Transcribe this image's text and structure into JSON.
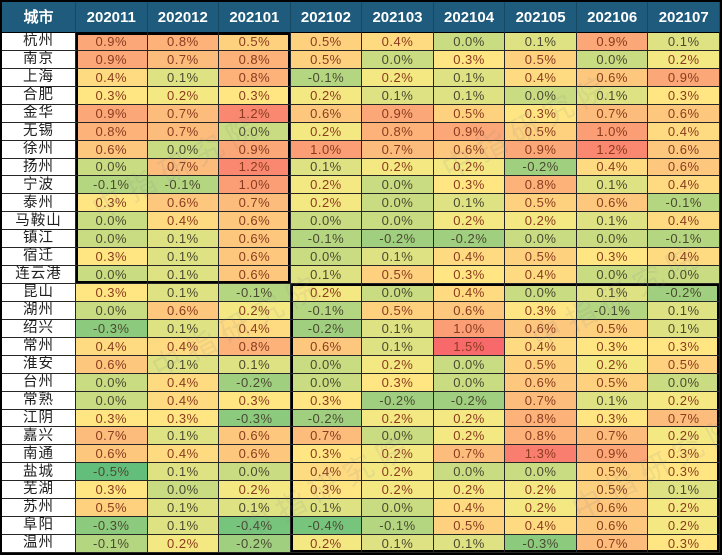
{
  "chart_data": {
    "type": "heatmap",
    "title": "",
    "header_city_label": "城市",
    "columns": [
      "202011",
      "202012",
      "202101",
      "202102",
      "202103",
      "202104",
      "202105",
      "202106",
      "202107"
    ],
    "unit": "%",
    "rows": [
      {
        "city": "杭州",
        "values": [
          0.9,
          0.8,
          0.5,
          0.5,
          0.4,
          0.0,
          0.1,
          0.9,
          0.1
        ]
      },
      {
        "city": "南京",
        "values": [
          0.9,
          0.7,
          0.8,
          0.5,
          0.0,
          0.3,
          0.5,
          0.0,
          0.2
        ]
      },
      {
        "city": "上海",
        "values": [
          0.4,
          0.1,
          0.8,
          -0.1,
          0.2,
          0.1,
          0.4,
          0.6,
          0.9
        ]
      },
      {
        "city": "合肥",
        "values": [
          0.3,
          0.2,
          0.3,
          0.2,
          0.1,
          0.1,
          0.0,
          0.1,
          0.3
        ]
      },
      {
        "city": "金华",
        "values": [
          0.9,
          0.7,
          1.2,
          0.6,
          0.9,
          0.5,
          0.3,
          0.7,
          0.6
        ]
      },
      {
        "city": "无锡",
        "values": [
          0.8,
          0.7,
          0.0,
          0.2,
          0.8,
          0.9,
          0.5,
          1.0,
          0.4
        ]
      },
      {
        "city": "徐州",
        "values": [
          0.6,
          0.0,
          0.9,
          1.0,
          0.7,
          0.6,
          0.9,
          1.2,
          0.6
        ]
      },
      {
        "city": "扬州",
        "values": [
          0.0,
          0.7,
          1.2,
          0.1,
          0.2,
          0.2,
          -0.2,
          0.4,
          0.6
        ]
      },
      {
        "city": "宁波",
        "values": [
          -0.1,
          -0.1,
          1.0,
          0.2,
          0.0,
          0.3,
          0.8,
          0.1,
          0.4
        ]
      },
      {
        "city": "泰州",
        "values": [
          0.3,
          0.6,
          0.7,
          0.2,
          0.0,
          0.1,
          0.5,
          0.6,
          -0.1
        ]
      },
      {
        "city": "马鞍山",
        "values": [
          0.0,
          0.4,
          0.6,
          0.0,
          0.0,
          0.2,
          0.2,
          0.1,
          0.4
        ]
      },
      {
        "city": "镇江",
        "values": [
          0.0,
          0.1,
          0.6,
          -0.1,
          -0.2,
          -0.2,
          0.0,
          0.0,
          -0.1
        ]
      },
      {
        "city": "宿迁",
        "values": [
          0.3,
          0.1,
          0.6,
          0.0,
          0.1,
          0.4,
          0.5,
          0.3,
          0.4
        ]
      },
      {
        "city": "连云港",
        "values": [
          0.0,
          0.1,
          0.6,
          0.1,
          0.5,
          0.3,
          0.4,
          0.0,
          0.0
        ]
      },
      {
        "city": "昆山",
        "values": [
          0.3,
          0.1,
          -0.1,
          0.2,
          0.0,
          0.4,
          0.0,
          0.1,
          -0.2
        ]
      },
      {
        "city": "湖州",
        "values": [
          0.0,
          0.6,
          0.2,
          -0.1,
          0.5,
          0.6,
          0.3,
          -0.1,
          0.1
        ]
      },
      {
        "city": "绍兴",
        "values": [
          -0.3,
          0.1,
          0.4,
          -0.2,
          0.1,
          1.0,
          0.6,
          0.5,
          0.1
        ]
      },
      {
        "city": "常州",
        "values": [
          0.4,
          0.4,
          0.8,
          0.6,
          0.1,
          1.5,
          0.4,
          0.3,
          0.3
        ]
      },
      {
        "city": "淮安",
        "values": [
          0.6,
          0.1,
          0.1,
          0.0,
          0.2,
          0.0,
          0.5,
          0.2,
          0.5
        ]
      },
      {
        "city": "台州",
        "values": [
          0.0,
          0.4,
          -0.2,
          0.0,
          0.3,
          0.0,
          0.6,
          0.5,
          0.0
        ]
      },
      {
        "city": "常熟",
        "values": [
          0.0,
          0.4,
          0.3,
          0.3,
          -0.2,
          -0.2,
          0.7,
          0.1,
          0.2
        ]
      },
      {
        "city": "江阴",
        "values": [
          0.3,
          0.3,
          -0.3,
          -0.2,
          0.2,
          0.2,
          0.8,
          0.3,
          0.7
        ]
      },
      {
        "city": "嘉兴",
        "values": [
          0.7,
          0.1,
          0.6,
          0.7,
          0.0,
          0.2,
          0.8,
          0.7,
          0.2
        ]
      },
      {
        "city": "南通",
        "values": [
          0.6,
          0.4,
          0.6,
          0.3,
          0.2,
          0.7,
          1.3,
          0.9,
          0.3
        ]
      },
      {
        "city": "盐城",
        "values": [
          -0.5,
          0.1,
          0.0,
          0.4,
          0.2,
          0.0,
          0.0,
          0.5,
          0.3
        ]
      },
      {
        "city": "芜湖",
        "values": [
          0.3,
          0.0,
          0.2,
          0.3,
          0.2,
          0.2,
          0.2,
          0.5,
          0.1
        ]
      },
      {
        "city": "苏州",
        "values": [
          0.5,
          0.1,
          0.1,
          0.1,
          0.0,
          0.4,
          0.2,
          0.6,
          0.2
        ]
      },
      {
        "city": "阜阳",
        "values": [
          -0.3,
          0.1,
          -0.4,
          -0.4,
          -0.1,
          0.5,
          0.4,
          0.6,
          0.2
        ]
      },
      {
        "city": "温州",
        "values": [
          -0.1,
          0.2,
          -0.2,
          0.2,
          0.1,
          0.1,
          -0.3,
          0.7,
          0.3
        ]
      }
    ],
    "value_range": [
      -0.5,
      1.5
    ],
    "color_scale": {
      "min_color": "#63BE7B",
      "low_mid_color": "#C9DC81",
      "mid_color": "#FFEB84",
      "max_color": "#F8696B",
      "anchors": [
        -0.5,
        0.0,
        0.25,
        1.5
      ]
    },
    "outlined_blocks": [
      {
        "row_start": 1,
        "row_end": 14,
        "col_start": 1,
        "col_end": 3
      },
      {
        "row_start": 15,
        "row_end": 29,
        "col_start": 4,
        "col_end": 9
      }
    ],
    "legend_position": "none",
    "grid": true
  },
  "colors": {
    "header_bg": "#1E5B7C",
    "header_text": "#FFFFFF",
    "grid_line": "#262626",
    "warm_value_text": "#8A3B1E",
    "cool_value_text": "#4A4A32",
    "city_text": "#1F1F1F"
  },
  "watermark": {
    "text": "中指研究院"
  }
}
